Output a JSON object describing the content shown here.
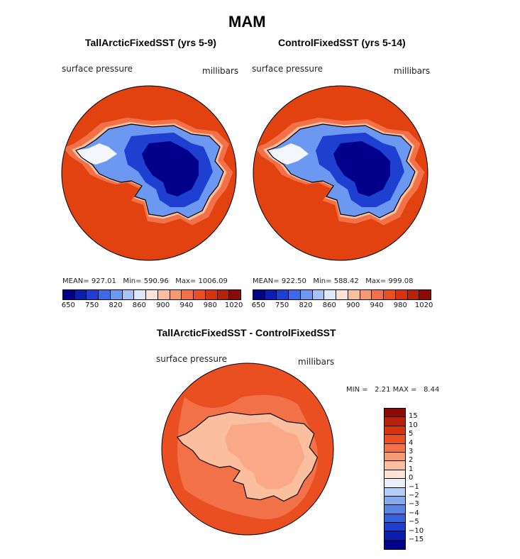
{
  "figure": {
    "title": "MAM",
    "panels": [
      {
        "subtitle": "TallArcticFixedSST (yrs 5-9)",
        "variable": "surface pressure",
        "units": "millibars",
        "stats": {
          "mean_label": "MEAN=",
          "mean": "927.01",
          "min_label": "Min=",
          "min": "590.96",
          "max_label": "Max=",
          "max": "1006.09"
        }
      },
      {
        "subtitle": "ControlFixedSST (yrs 5-14)",
        "variable": "surface pressure",
        "units": "millibars",
        "stats": {
          "mean_label": "MEAN=",
          "mean": "922.50",
          "min_label": "Min=",
          "min": "588.42",
          "max_label": "Max=",
          "max": "999.08"
        }
      }
    ],
    "diff_panel": {
      "subtitle": "TallArcticFixedSST - ControlFixedSST",
      "variable": "surface pressure",
      "units": "millibars",
      "min_label": "MIN =",
      "min": "2.21",
      "max_label": "MAX =",
      "max": "8.44"
    }
  },
  "colorbars": {
    "absolute": {
      "colors": [
        "#00008b",
        "#0a1fb0",
        "#1f3fd0",
        "#3d6ae8",
        "#6d98f2",
        "#a5c3f6",
        "#dce8fb",
        "#fde3d6",
        "#fbbf9f",
        "#f79a71",
        "#f27148",
        "#ea4f22",
        "#d8340c",
        "#b7230a",
        "#8b0b05"
      ],
      "tick_labels": [
        "650",
        "750",
        "820",
        "860",
        "900",
        "940",
        "980",
        "1020"
      ]
    },
    "difference": {
      "colors": [
        "#8b0b05",
        "#b7230a",
        "#d8340c",
        "#ea4f22",
        "#f27148",
        "#f79a71",
        "#fbbf9f",
        "#fde3d6",
        "#eaf0fa",
        "#b6cdf4",
        "#86aaee",
        "#5a86e6",
        "#3562da",
        "#1f3fd0",
        "#0a1fb0",
        "#00008b"
      ],
      "tick_labels": [
        "15",
        "10",
        "5",
        "4",
        "3",
        "2",
        "1",
        "0",
        "−1",
        "−2",
        "−3",
        "−4",
        "−5",
        "−10",
        "−15"
      ]
    }
  }
}
